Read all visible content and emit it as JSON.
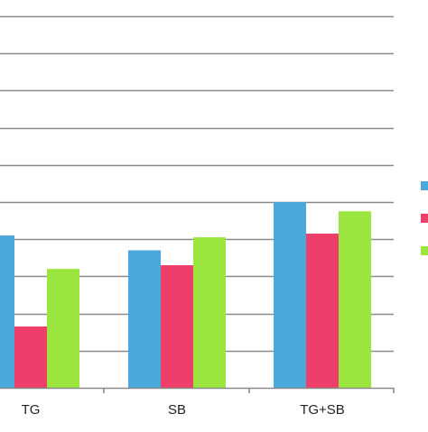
{
  "colors": {
    "series_blue": "#4aa8dd",
    "series_pink": "#ee3f6b",
    "series_green": "#9ae63e",
    "gridline": "#8a8a8a",
    "axis": "#8a8a8a",
    "text": "#222222",
    "background": "#ffffff"
  },
  "chart_data": {
    "type": "bar",
    "categories": [
      "TG",
      "SB",
      "TG+SB"
    ],
    "series": [
      {
        "values": [
          8.2,
          7.4,
          10.0
        ]
      },
      {
        "values": [
          3.3,
          6.6,
          8.3
        ]
      },
      {
        "values": [
          6.4,
          8.1,
          9.5
        ]
      }
    ],
    "ylim": [
      0,
      20
    ],
    "ytick_step": 2,
    "grid": true,
    "legend": "right",
    "title": "",
    "xlabel": "",
    "ylabel": ""
  }
}
